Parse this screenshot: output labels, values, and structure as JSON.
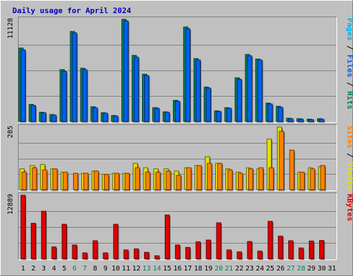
{
  "colors": {
    "background": "#c0c0c0",
    "border_light": "#ffffff",
    "border_dark": "#808080",
    "title": "#0000c0",
    "pages": "#00b4e8",
    "files": "#0060f0",
    "hits": "#00805c",
    "sites": "#ff8000",
    "visits": "#e0e000",
    "kbytes": "#e00000",
    "weekday": "#000000",
    "weekend": "#00805c"
  },
  "chart_data": {
    "type": "bar",
    "title": "Daily usage for April 2024",
    "categories": [
      "1",
      "2",
      "3",
      "4",
      "5",
      "6",
      "7",
      "8",
      "9",
      "10",
      "11",
      "12",
      "13",
      "14",
      "15",
      "16",
      "17",
      "18",
      "19",
      "20",
      "21",
      "22",
      "23",
      "24",
      "25",
      "26",
      "27",
      "28",
      "29",
      "30",
      "31"
    ],
    "weekend_days": [
      "6",
      "7",
      "13",
      "14",
      "20",
      "21",
      "27",
      "28"
    ],
    "panels": [
      {
        "name": "hits",
        "max_label": "11128",
        "ymax": 11128,
        "legend": [
          {
            "text": "Pages",
            "color": "#00b4e8"
          },
          {
            "text": " / ",
            "color": "#000000"
          },
          {
            "text": "Files",
            "color": "#0060f0"
          },
          {
            "text": " / ",
            "color": "#000000"
          },
          {
            "text": "Hits",
            "color": "#00805c"
          }
        ],
        "series": [
          {
            "name": "Hits",
            "values": [
              8000,
              1850,
              1000,
              750,
              5650,
              9800,
              5800,
              1600,
              950,
              650,
              11128,
              7200,
              5150,
              1500,
              1050,
              2300,
              10300,
              6850,
              3750,
              1150,
              1500,
              4750,
              7300,
              6800,
              2000,
              1650,
              350,
              300,
              250,
              300,
              0
            ]
          },
          {
            "name": "Files",
            "values": [
              7800,
              1750,
              950,
              700,
              5450,
              9650,
              5650,
              1500,
              900,
              600,
              10950,
              7000,
              5000,
              1450,
              1000,
              2200,
              10100,
              6700,
              3650,
              1100,
              1450,
              4600,
              7150,
              6700,
              1900,
              1550,
              300,
              250,
              200,
              250,
              0
            ]
          },
          {
            "name": "Pages",
            "values": [
              0,
              0,
              0,
              0,
              0,
              0,
              0,
              0,
              0,
              0,
              0,
              0,
              0,
              0,
              0,
              0,
              0,
              0,
              0,
              0,
              0,
              0,
              0,
              0,
              0,
              0,
              0,
              0,
              0,
              0,
              0
            ]
          }
        ]
      },
      {
        "name": "visitors",
        "max_label": "285",
        "ymax": 285,
        "legend": [
          {
            "text": "Sites",
            "color": "#ff8000"
          },
          {
            "text": " / ",
            "color": "#000000"
          },
          {
            "text": "Visits",
            "color": "#e0e000"
          }
        ],
        "series": [
          {
            "name": "Visits",
            "values": [
              95,
              110,
              115,
              95,
              80,
              0,
              75,
              85,
              70,
              75,
              75,
              120,
              100,
              95,
              95,
              85,
              100,
              110,
              150,
              120,
              95,
              80,
              100,
              95,
              230,
              285,
              0,
              80,
              100,
              105,
              0
            ]
          },
          {
            "name": "Sites",
            "values": [
              80,
              100,
              90,
              95,
              80,
              75,
              75,
              85,
              70,
              75,
              75,
              100,
              80,
              80,
              85,
              65,
              100,
              110,
              120,
              120,
              90,
              75,
              95,
              100,
              100,
              265,
              180,
              80,
              95,
              110,
              0
            ]
          }
        ]
      },
      {
        "name": "kbytes",
        "max_label": "12889",
        "ymax": 12889,
        "legend": [
          {
            "text": "KBytes",
            "color": "#e00000"
          }
        ],
        "series": [
          {
            "name": "KBytes",
            "values": [
              12889,
              7200,
              9650,
              2400,
              7000,
              2800,
              1200,
              3650,
              1200,
              7000,
              1800,
              2000,
              1300,
              600,
              8900,
              2800,
              2300,
              3450,
              3800,
              7300,
              1800,
              1400,
              3500,
              1550,
              7600,
              4600,
              3650,
              2200,
              3600,
              3700,
              0
            ]
          }
        ]
      }
    ]
  }
}
